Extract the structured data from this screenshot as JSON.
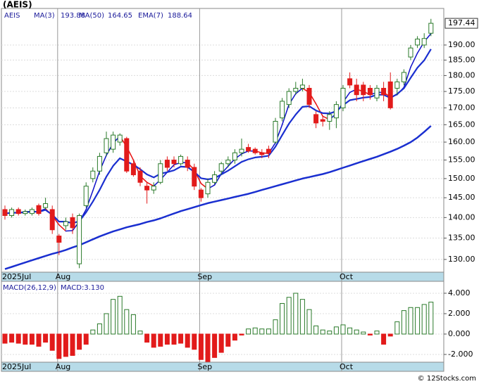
{
  "chart_data": [
    {
      "type": "candlestick",
      "title": "(AEIS)",
      "ticker": "AEIS",
      "log_scale": true,
      "grid": true,
      "categories": [
        "2025Jul",
        null,
        null,
        null,
        null,
        null,
        null,
        null,
        "Aug",
        null,
        null,
        null,
        null,
        null,
        null,
        null,
        null,
        null,
        null,
        null,
        null,
        null,
        null,
        null,
        null,
        null,
        null,
        null,
        null,
        "Sep",
        null,
        null,
        null,
        null,
        null,
        null,
        null,
        null,
        null,
        null,
        null,
        null,
        null,
        null,
        null,
        null,
        null,
        null,
        null,
        null,
        "Oct",
        null,
        null,
        null,
        null,
        null,
        null,
        null,
        null,
        null,
        null,
        null,
        null,
        null
      ],
      "open": [
        142,
        140.5,
        142,
        141,
        141,
        143,
        142.5,
        142,
        135.5,
        138,
        140,
        129,
        143,
        150,
        152,
        157,
        158,
        160,
        161,
        154,
        152,
        148,
        147,
        149,
        155,
        155,
        154,
        155,
        153,
        147,
        146,
        149,
        152,
        154,
        155,
        157,
        158.5,
        158,
        157,
        158,
        160,
        167,
        171,
        175,
        176,
        176,
        168,
        166.5,
        166,
        167,
        170,
        179,
        177,
        177,
        176,
        173,
        176,
        178,
        176,
        178,
        186,
        190,
        190,
        194
      ],
      "high": [
        143,
        142.5,
        142.5,
        142,
        142.5,
        143.5,
        145,
        143,
        136,
        140,
        141,
        141,
        149,
        153,
        157,
        163,
        163,
        162.5,
        161.5,
        155,
        153,
        149,
        149,
        155,
        156,
        156,
        156.5,
        156,
        154,
        147.5,
        150,
        152,
        154.5,
        156,
        158,
        161,
        159.5,
        158.5,
        158,
        159,
        167,
        173,
        176,
        178,
        179,
        177,
        169,
        167.5,
        169,
        172,
        177,
        181,
        179,
        178,
        177,
        177,
        178,
        181,
        179,
        182,
        190,
        193,
        194,
        199
      ],
      "low": [
        139.5,
        140,
        140.5,
        140.5,
        140.5,
        140.5,
        142,
        136,
        131,
        137,
        136,
        128,
        142.5,
        149,
        151,
        156,
        157,
        159,
        151.5,
        150.5,
        148,
        143.5,
        146,
        148.5,
        152,
        153,
        153.5,
        152,
        147,
        144,
        145,
        148.5,
        151,
        153,
        154,
        156,
        157,
        156.5,
        155.5,
        155.5,
        159.5,
        166,
        170,
        174,
        175,
        170,
        164,
        164.5,
        163.5,
        164,
        169,
        176,
        172,
        172,
        172.5,
        172,
        172,
        169.5,
        174,
        177,
        185,
        189,
        189,
        193
      ],
      "close": [
        140.5,
        142,
        141,
        141.5,
        142,
        141,
        143.5,
        137,
        134,
        139,
        137.5,
        140.5,
        148,
        152,
        156,
        161,
        162,
        162,
        152,
        151,
        149,
        147,
        148,
        154,
        153,
        154,
        156,
        153,
        148,
        145,
        149,
        151,
        154,
        155,
        157,
        158,
        157.5,
        157,
        156.5,
        157,
        166,
        172,
        175,
        176,
        177,
        171,
        165.5,
        166,
        168,
        171,
        176,
        177,
        174,
        174,
        174,
        176,
        174,
        170,
        178,
        181,
        189,
        192,
        192.2,
        197.44
      ],
      "up_color": "#2a7a2a",
      "down_color": "#e21b1b",
      "series": [
        {
          "name": "MA(3)",
          "value_label": "193.88",
          "color": "#1010c8",
          "down_color": "#e81010",
          "width": 1.5,
          "values": [
            141,
            141.2,
            141.2,
            141.5,
            141.5,
            141.5,
            142.2,
            140.5,
            138.2,
            136.7,
            136.8,
            139,
            142,
            146.8,
            152,
            156.3,
            159.7,
            161.7,
            158.7,
            155,
            150.7,
            149,
            148,
            149.7,
            151.7,
            153.7,
            154.3,
            154.3,
            152.3,
            148.7,
            147.3,
            148.3,
            151.3,
            153.3,
            155.3,
            156.7,
            157.5,
            157.5,
            157,
            156.8,
            159.8,
            165,
            171,
            174.3,
            176,
            174.7,
            171.2,
            167.5,
            166.5,
            168.3,
            171.7,
            174.7,
            175.7,
            175,
            174,
            174.7,
            174.7,
            173.3,
            174,
            176.3,
            182.7,
            187.3,
            191.1,
            193.88
          ]
        },
        {
          "name": "MA(50)",
          "value_label": "164.65",
          "color": "#1a2fd0",
          "width": 2.5,
          "values": [
            127.8,
            128.3,
            128.8,
            129.3,
            129.8,
            130.3,
            130.8,
            131.3,
            131.7,
            132.2,
            132.8,
            133.3,
            134,
            134.7,
            135.4,
            136,
            136.6,
            137.1,
            137.6,
            138,
            138.4,
            138.9,
            139.3,
            139.8,
            140.4,
            141,
            141.6,
            142.1,
            142.6,
            143.1,
            143.6,
            144,
            144.4,
            144.8,
            145.2,
            145.6,
            146,
            146.5,
            147,
            147.5,
            148,
            148.5,
            149,
            149.5,
            150,
            150.4,
            150.8,
            151.2,
            151.7,
            152.3,
            152.9,
            153.5,
            154.1,
            154.7,
            155.3,
            155.9,
            156.6,
            157.3,
            158.1,
            159,
            160,
            161.3,
            162.9,
            164.65
          ]
        },
        {
          "name": "EMA(7)",
          "value_label": "188.64",
          "color": "#1a2fd0",
          "width": 2.2,
          "values": [
            141,
            141.2,
            141.2,
            141.3,
            141.5,
            141.4,
            141.9,
            140.7,
            139,
            139,
            138.6,
            139.1,
            141.3,
            144,
            147,
            150.5,
            153.4,
            155.5,
            154.6,
            153.7,
            152.5,
            151.1,
            150.3,
            151.3,
            151.7,
            152.2,
            153.2,
            153.1,
            151.8,
            150.1,
            149.8,
            150.1,
            151.1,
            152.1,
            153.3,
            154.5,
            155.2,
            155.7,
            155.9,
            156.2,
            158.7,
            162,
            165.3,
            168,
            170.3,
            170.5,
            169.2,
            168.4,
            168.3,
            169,
            170.8,
            172.3,
            172.7,
            173.1,
            173.3,
            174,
            174,
            173,
            174.2,
            176,
            179.3,
            182.5,
            184.9,
            188.64
          ]
        }
      ],
      "ylim": [
        127.1,
        202.7
      ],
      "yticks": [
        {
          "value": 130,
          "label": "130.00"
        },
        {
          "value": 135,
          "label": "135.00"
        },
        {
          "value": 140,
          "label": "140.00"
        },
        {
          "value": 145,
          "label": "145.00"
        },
        {
          "value": 150,
          "label": "150.00"
        },
        {
          "value": 155,
          "label": "155.00"
        },
        {
          "value": 160,
          "label": "160.00"
        },
        {
          "value": 165,
          "label": "165.00"
        },
        {
          "value": 170,
          "label": "170.00"
        },
        {
          "value": 175,
          "label": "175.00"
        },
        {
          "value": 180,
          "label": "180.00"
        },
        {
          "value": 185,
          "label": "185.00"
        },
        {
          "value": 190,
          "label": "190.00"
        }
      ]
    },
    {
      "type": "bar",
      "name": "MACD(26,12,9)",
      "current_label": "MACD:3.130",
      "categories": [
        "2025Jul",
        null,
        null,
        null,
        null,
        null,
        null,
        null,
        "Aug",
        null,
        null,
        null,
        null,
        null,
        null,
        null,
        null,
        null,
        null,
        null,
        null,
        null,
        null,
        null,
        null,
        null,
        null,
        null,
        null,
        "Sep",
        null,
        null,
        null,
        null,
        null,
        null,
        null,
        null,
        null,
        null,
        null,
        null,
        null,
        null,
        null,
        null,
        null,
        null,
        null,
        null,
        "Oct",
        null,
        null,
        null,
        null,
        null,
        null,
        null,
        null,
        null,
        null,
        null,
        null,
        null
      ],
      "values": [
        -0.9,
        -0.8,
        -0.9,
        -1.0,
        -1.0,
        -1.2,
        -0.8,
        -1.6,
        -2.4,
        -2.2,
        -2.1,
        -1.5,
        -1.0,
        0.4,
        1.0,
        2.0,
        3.4,
        3.7,
        2.4,
        1.9,
        0.3,
        -0.8,
        -1.3,
        -1.2,
        -1.0,
        -1.0,
        -0.9,
        -1.3,
        -1.5,
        -2.5,
        -2.7,
        -2.3,
        -1.8,
        -1.2,
        -0.6,
        -0.1,
        0.5,
        0.6,
        0.5,
        0.5,
        1.4,
        3.0,
        3.6,
        4.0,
        3.4,
        2.4,
        0.8,
        0.4,
        0.3,
        0.7,
        0.9,
        0.6,
        0.4,
        0.2,
        -0.1,
        0.3,
        -1.0,
        -0.2,
        1.2,
        2.3,
        2.6,
        2.6,
        2.9,
        3.13
      ],
      "up_color": "#2a7a2a",
      "down_color": "#e21b1b",
      "ylim": [
        -2.76,
        5.17
      ],
      "yticks": [
        {
          "value": 4,
          "label": "4.000"
        },
        {
          "value": 2,
          "label": "2.000"
        },
        {
          "value": 0,
          "label": "0.000"
        },
        {
          "value": -2,
          "label": "-2.000"
        }
      ]
    }
  ],
  "footer": "© 12Stocks.com"
}
